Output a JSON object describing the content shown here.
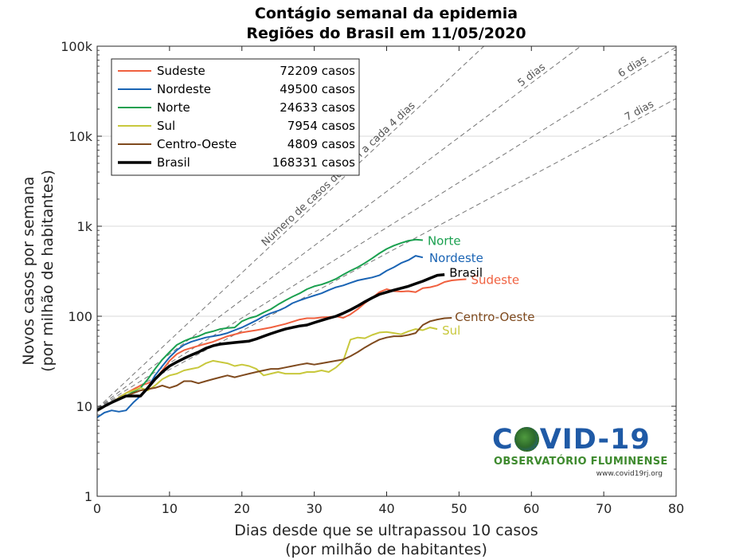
{
  "chart_data": {
    "type": "line",
    "title": [
      "Contágio semanal da epidemia",
      "Regiões do Brasil em 11/05/2020"
    ],
    "xlabel": [
      "Dias desde que se ultrapassou 10 casos",
      "(por milhão de habitantes)"
    ],
    "ylabel": [
      "Novos casos por semana",
      "(por milhão de habitantes)"
    ],
    "xlim": [
      0,
      80
    ],
    "ylim": [
      1,
      100000
    ],
    "yscale": "log",
    "grid": "horizontal",
    "legend_position": "top-left",
    "xticks": [
      0,
      10,
      20,
      30,
      40,
      50,
      60,
      70,
      80
    ],
    "xtick_labels": [
      "0",
      "10",
      "20",
      "30",
      "40",
      "50",
      "60",
      "70",
      "80"
    ],
    "yticks": [
      1,
      10,
      100,
      1000,
      10000,
      100000
    ],
    "ytick_labels": [
      "1",
      "10",
      "100",
      "1k",
      "10k",
      "100k"
    ],
    "reference_lines": [
      {
        "label": "Número de casos dobram a cada 4 dias",
        "doubling_days": 4,
        "start": 9.5
      },
      {
        "label": "5 dias",
        "doubling_days": 5,
        "start": 9.5
      },
      {
        "label": "6 dias",
        "doubling_days": 6,
        "start": 9.5
      },
      {
        "label": "7 dias",
        "doubling_days": 7,
        "start": 9.5
      }
    ],
    "series": [
      {
        "name": "Sudeste",
        "cases": "72209 casos",
        "end_label": "Sudeste",
        "color": "#f0603f",
        "width": 2,
        "points": [
          [
            0,
            9
          ],
          [
            2,
            11
          ],
          [
            4,
            14
          ],
          [
            6,
            17
          ],
          [
            7,
            18
          ],
          [
            8,
            20
          ],
          [
            9,
            25
          ],
          [
            10,
            32
          ],
          [
            11,
            38
          ],
          [
            12,
            42
          ],
          [
            14,
            47
          ],
          [
            16,
            52
          ],
          [
            18,
            60
          ],
          [
            20,
            66
          ],
          [
            22,
            70
          ],
          [
            24,
            75
          ],
          [
            26,
            82
          ],
          [
            28,
            92
          ],
          [
            29,
            95
          ],
          [
            30,
            95
          ],
          [
            31,
            97
          ],
          [
            32,
            98
          ],
          [
            33,
            100
          ],
          [
            34,
            96
          ],
          [
            35,
            105
          ],
          [
            36,
            120
          ],
          [
            37,
            140
          ],
          [
            38,
            160
          ],
          [
            39,
            185
          ],
          [
            40,
            200
          ],
          [
            41,
            190
          ],
          [
            42,
            188
          ],
          [
            43,
            190
          ],
          [
            44,
            185
          ],
          [
            45,
            205
          ],
          [
            46,
            210
          ],
          [
            47,
            220
          ],
          [
            48,
            240
          ],
          [
            49,
            250
          ],
          [
            50,
            255
          ],
          [
            51,
            258
          ]
        ]
      },
      {
        "name": "Nordeste",
        "cases": "49500 casos",
        "end_label": "Nordeste",
        "color": "#1a64b4",
        "width": 2,
        "points": [
          [
            0,
            7.5
          ],
          [
            1,
            8.5
          ],
          [
            2,
            9
          ],
          [
            3,
            8.7
          ],
          [
            4,
            9
          ],
          [
            5,
            11
          ],
          [
            6,
            13
          ],
          [
            7,
            16
          ],
          [
            8,
            22
          ],
          [
            9,
            28
          ],
          [
            10,
            35
          ],
          [
            11,
            42
          ],
          [
            12,
            48
          ],
          [
            13,
            52
          ],
          [
            14,
            55
          ],
          [
            15,
            58
          ],
          [
            16,
            60
          ],
          [
            17,
            62
          ],
          [
            18,
            65
          ],
          [
            19,
            70
          ],
          [
            20,
            75
          ],
          [
            21,
            82
          ],
          [
            22,
            90
          ],
          [
            23,
            100
          ],
          [
            24,
            108
          ],
          [
            25,
            115
          ],
          [
            26,
            125
          ],
          [
            27,
            140
          ],
          [
            28,
            150
          ],
          [
            29,
            160
          ],
          [
            30,
            170
          ],
          [
            31,
            180
          ],
          [
            32,
            195
          ],
          [
            33,
            210
          ],
          [
            34,
            220
          ],
          [
            35,
            235
          ],
          [
            36,
            250
          ],
          [
            37,
            260
          ],
          [
            38,
            270
          ],
          [
            39,
            285
          ],
          [
            40,
            320
          ],
          [
            41,
            350
          ],
          [
            42,
            390
          ],
          [
            43,
            420
          ],
          [
            44,
            470
          ],
          [
            45,
            450
          ]
        ]
      },
      {
        "name": "Norte",
        "cases": "24633 casos",
        "end_label": "Norte",
        "color": "#1aa04f",
        "width": 2,
        "points": [
          [
            0,
            9
          ],
          [
            2,
            11
          ],
          [
            4,
            13
          ],
          [
            6,
            16
          ],
          [
            7,
            20
          ],
          [
            8,
            26
          ],
          [
            9,
            33
          ],
          [
            10,
            40
          ],
          [
            11,
            48
          ],
          [
            12,
            53
          ],
          [
            13,
            57
          ],
          [
            14,
            60
          ],
          [
            15,
            65
          ],
          [
            16,
            68
          ],
          [
            17,
            72
          ],
          [
            18,
            74
          ],
          [
            19,
            75
          ],
          [
            20,
            88
          ],
          [
            21,
            95
          ],
          [
            22,
            100
          ],
          [
            23,
            110
          ],
          [
            24,
            120
          ],
          [
            25,
            135
          ],
          [
            26,
            150
          ],
          [
            27,
            165
          ],
          [
            28,
            180
          ],
          [
            29,
            200
          ],
          [
            30,
            215
          ],
          [
            31,
            225
          ],
          [
            32,
            240
          ],
          [
            33,
            260
          ],
          [
            34,
            290
          ],
          [
            35,
            320
          ],
          [
            36,
            350
          ],
          [
            37,
            390
          ],
          [
            38,
            440
          ],
          [
            39,
            500
          ],
          [
            40,
            560
          ],
          [
            41,
            610
          ],
          [
            42,
            650
          ],
          [
            43,
            690
          ],
          [
            44,
            710
          ],
          [
            45,
            700
          ]
        ]
      },
      {
        "name": "Sul",
        "cases": "7954 casos",
        "end_label": "Sul",
        "color": "#c8c83c",
        "width": 2,
        "points": [
          [
            0,
            9
          ],
          [
            2,
            11
          ],
          [
            4,
            14
          ],
          [
            6,
            16
          ],
          [
            7,
            15
          ],
          [
            8,
            17
          ],
          [
            9,
            20
          ],
          [
            10,
            22
          ],
          [
            11,
            23
          ],
          [
            12,
            25
          ],
          [
            13,
            26
          ],
          [
            14,
            27
          ],
          [
            15,
            30
          ],
          [
            16,
            32
          ],
          [
            17,
            31
          ],
          [
            18,
            30
          ],
          [
            19,
            28
          ],
          [
            20,
            29
          ],
          [
            21,
            28
          ],
          [
            22,
            26
          ],
          [
            23,
            22
          ],
          [
            24,
            23
          ],
          [
            25,
            24
          ],
          [
            26,
            23
          ],
          [
            27,
            23
          ],
          [
            28,
            23
          ],
          [
            29,
            24
          ],
          [
            30,
            24
          ],
          [
            31,
            25
          ],
          [
            32,
            24
          ],
          [
            33,
            27
          ],
          [
            34,
            32
          ],
          [
            35,
            55
          ],
          [
            36,
            58
          ],
          [
            37,
            57
          ],
          [
            38,
            62
          ],
          [
            39,
            66
          ],
          [
            40,
            67
          ],
          [
            41,
            65
          ],
          [
            42,
            63
          ],
          [
            43,
            68
          ],
          [
            44,
            72
          ],
          [
            45,
            70
          ],
          [
            46,
            75
          ],
          [
            47,
            72
          ]
        ]
      },
      {
        "name": "Centro-Oeste",
        "cases": "4809 casos",
        "end_label": "Centro-Oeste",
        "color": "#7f4a1e",
        "width": 2,
        "points": [
          [
            0,
            9
          ],
          [
            2,
            11
          ],
          [
            4,
            13
          ],
          [
            6,
            15
          ],
          [
            8,
            16
          ],
          [
            9,
            17
          ],
          [
            10,
            16
          ],
          [
            11,
            17
          ],
          [
            12,
            19
          ],
          [
            13,
            19
          ],
          [
            14,
            18
          ],
          [
            15,
            19
          ],
          [
            16,
            20
          ],
          [
            17,
            21
          ],
          [
            18,
            22
          ],
          [
            19,
            21
          ],
          [
            20,
            22
          ],
          [
            21,
            23
          ],
          [
            22,
            24
          ],
          [
            23,
            25
          ],
          [
            24,
            26
          ],
          [
            25,
            26
          ],
          [
            26,
            27
          ],
          [
            27,
            28
          ],
          [
            28,
            29
          ],
          [
            29,
            30
          ],
          [
            30,
            29
          ],
          [
            31,
            30
          ],
          [
            32,
            31
          ],
          [
            33,
            32
          ],
          [
            34,
            33
          ],
          [
            35,
            36
          ],
          [
            36,
            40
          ],
          [
            37,
            45
          ],
          [
            38,
            50
          ],
          [
            39,
            55
          ],
          [
            40,
            58
          ],
          [
            41,
            60
          ],
          [
            42,
            60
          ],
          [
            43,
            62
          ],
          [
            44,
            65
          ],
          [
            45,
            80
          ],
          [
            46,
            88
          ],
          [
            47,
            92
          ],
          [
            48,
            95
          ],
          [
            49,
            96
          ]
        ]
      },
      {
        "name": "Brasil",
        "cases": "168331 casos",
        "end_label": "Brasil",
        "color": "#000000",
        "width": 3.5,
        "points": [
          [
            0,
            9
          ],
          [
            1,
            10
          ],
          [
            2,
            11
          ],
          [
            3,
            12
          ],
          [
            4,
            13
          ],
          [
            5,
            13
          ],
          [
            6,
            13
          ],
          [
            7,
            16
          ],
          [
            8,
            20
          ],
          [
            9,
            24
          ],
          [
            10,
            28
          ],
          [
            11,
            31
          ],
          [
            12,
            34
          ],
          [
            13,
            37
          ],
          [
            14,
            40
          ],
          [
            15,
            44
          ],
          [
            16,
            47
          ],
          [
            17,
            49
          ],
          [
            18,
            50
          ],
          [
            19,
            51
          ],
          [
            20,
            52
          ],
          [
            21,
            53
          ],
          [
            22,
            56
          ],
          [
            23,
            60
          ],
          [
            24,
            64
          ],
          [
            25,
            68
          ],
          [
            26,
            72
          ],
          [
            27,
            75
          ],
          [
            28,
            78
          ],
          [
            29,
            80
          ],
          [
            30,
            85
          ],
          [
            31,
            90
          ],
          [
            32,
            95
          ],
          [
            33,
            100
          ],
          [
            34,
            108
          ],
          [
            35,
            118
          ],
          [
            36,
            130
          ],
          [
            37,
            145
          ],
          [
            38,
            160
          ],
          [
            39,
            175
          ],
          [
            40,
            185
          ],
          [
            41,
            195
          ],
          [
            42,
            205
          ],
          [
            43,
            215
          ],
          [
            44,
            230
          ],
          [
            45,
            245
          ],
          [
            46,
            265
          ],
          [
            47,
            285
          ],
          [
            48,
            290
          ]
        ]
      }
    ]
  },
  "logo": {
    "main": "C",
    "main_rest": "VID-19",
    "sub": "OBSERVATÓRIO FLUMINENSE",
    "url": "www.covid19rj.org"
  }
}
